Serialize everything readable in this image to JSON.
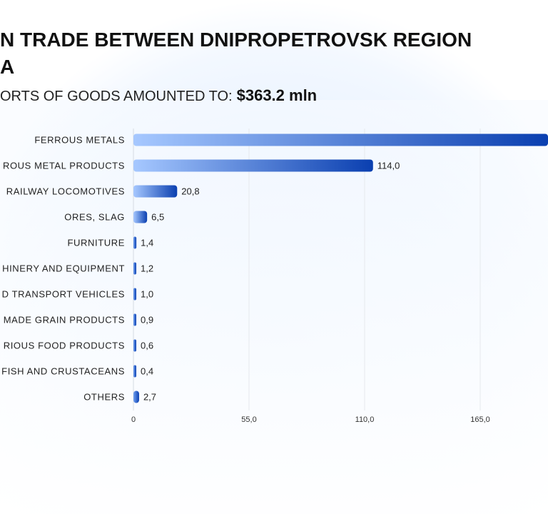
{
  "header": {
    "title_line1": "N TRADE BETWEEN DNIPROPETROVSK REGION",
    "title_line2": "A",
    "subtitle": "ORTS OF GOODS AMOUNTED TO:",
    "total": "$363.2 mln"
  },
  "chart_data": {
    "type": "bar",
    "orientation": "horizontal",
    "categories": [
      "FERROUS METALS",
      "ROUS METAL PRODUCTS",
      "RAILWAY LOCOMOTIVES",
      "ORES, SLAG",
      "FURNITURE",
      "HINERY AND EQUIPMENT",
      "D TRANSPORT VEHICLES",
      "MADE GRAIN PRODUCTS",
      "RIOUS FOOD PRODUCTS",
      "FISH AND CRUSTACEANS",
      "OTHERS"
    ],
    "values": [
      213.7,
      114.0,
      20.8,
      6.5,
      1.4,
      1.2,
      1.0,
      0.9,
      0.6,
      0.4,
      2.7
    ],
    "value_labels": [
      "",
      "114,0",
      "20,8",
      "6,5",
      "1,4",
      "1,2",
      "1,0",
      "0,9",
      "0,6",
      "0,4",
      "2,7"
    ],
    "x_ticks": [
      0,
      55,
      110,
      165
    ],
    "x_tick_labels": [
      "0",
      "55,0",
      "110,0",
      "165,0"
    ],
    "xlim": [
      0,
      220
    ],
    "grid": true,
    "colors": {
      "bar_start": "#a6c8ff",
      "bar_end": "#0a3fb0"
    }
  }
}
